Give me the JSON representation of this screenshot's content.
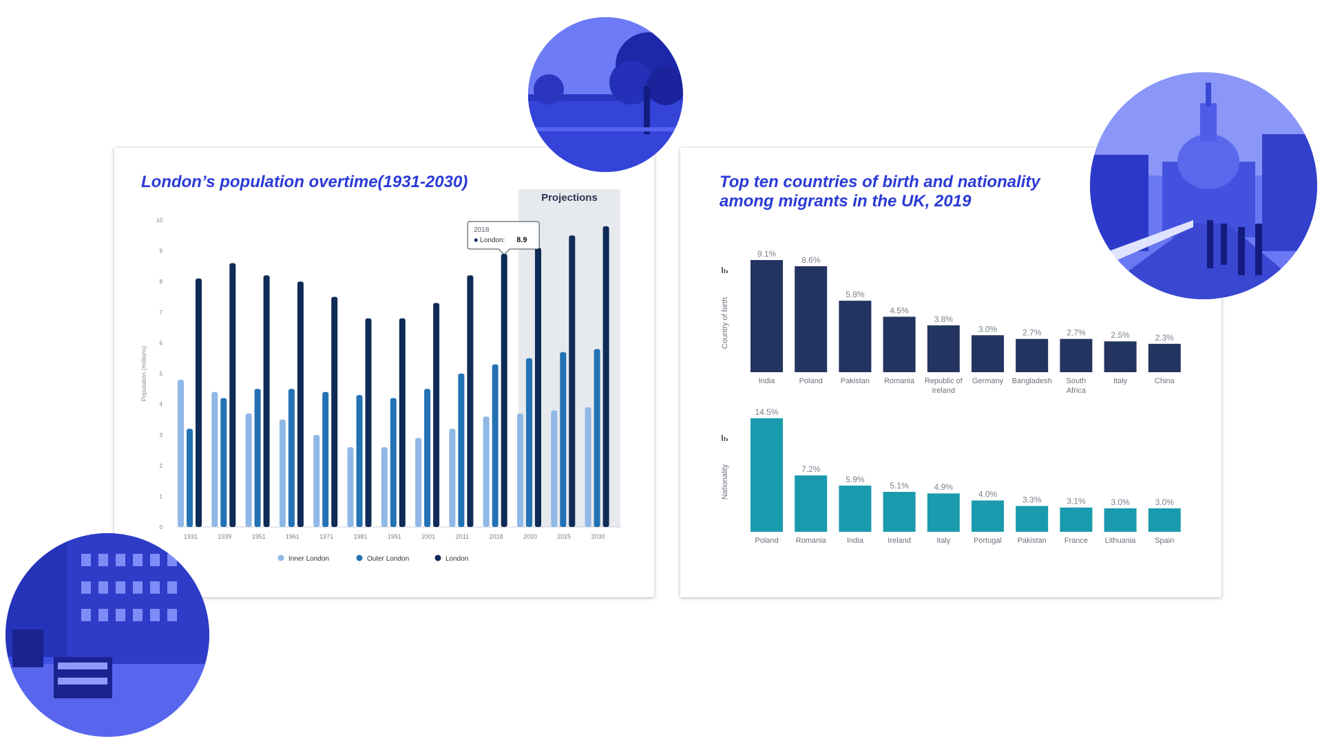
{
  "left_card": {
    "title": "London’s population overtime(1931-2030)"
  },
  "right_card": {
    "title_line1": "Top ten countries of birth and nationality",
    "title_line2": "among migrants in the UK, 2019"
  },
  "photos": [
    {
      "subject": "park with trees",
      "tint": "#2f3fe0"
    },
    {
      "subject": "St Paul's Cathedral and Millennium Bridge",
      "tint": "#2f3fe0"
    },
    {
      "subject": "London street with double-decker buses",
      "tint": "#2f3fe0"
    }
  ],
  "chart_data": [
    {
      "type": "bar",
      "title": "",
      "ylabel": "Population (millions)",
      "ylim": [
        0,
        10
      ],
      "yticks": [
        "0",
        "1",
        "2",
        "3",
        "4",
        "5",
        "6",
        "7",
        "8",
        "9",
        "10"
      ],
      "categories": [
        "1931",
        "1939",
        "1951",
        "1961",
        "1971",
        "1981",
        "1991",
        "2001",
        "2011",
        "2018",
        "2020",
        "2025",
        "2030"
      ],
      "series": [
        {
          "name": "Inner London",
          "color": "#8fb8e6",
          "values": [
            4.8,
            4.4,
            3.7,
            3.5,
            3.0,
            2.6,
            2.6,
            2.9,
            3.2,
            3.6,
            3.7,
            3.8,
            3.9
          ]
        },
        {
          "name": "Outer London",
          "color": "#2372b4",
          "values": [
            3.2,
            4.2,
            4.5,
            4.5,
            4.4,
            4.3,
            4.2,
            4.5,
            5.0,
            5.3,
            5.5,
            5.7,
            5.8
          ]
        },
        {
          "name": "London",
          "color": "#0f2b57",
          "values": [
            8.1,
            8.6,
            8.2,
            8.0,
            7.5,
            6.8,
            6.8,
            7.3,
            8.2,
            8.9,
            9.1,
            9.5,
            9.8
          ]
        }
      ],
      "shaded_region": {
        "label": "Projections",
        "from_category": "2020",
        "to_category": "2030",
        "color": "#e6e9ee"
      },
      "tooltip": {
        "category": "2018",
        "series": "London",
        "value": "8.9"
      },
      "legend_position": "bottom",
      "grid": false
    },
    {
      "type": "bar",
      "title": "",
      "ylabel": "Country of birth",
      "color": "#243460",
      "categories": [
        "India",
        "Poland",
        "Pakistan",
        "Romania",
        "Republic of Ireland",
        "Germany",
        "Bangladesh",
        "South Africa",
        "Italy",
        "China"
      ],
      "values": [
        9.1,
        8.6,
        5.8,
        4.5,
        3.8,
        3.0,
        2.7,
        2.7,
        2.5,
        2.3
      ],
      "labels": [
        "9.1%",
        "8.6%",
        "5.8%",
        "4.5%",
        "3.8%",
        "3.0%",
        "2.7%",
        "2.7%",
        "2.5%",
        "2.3%"
      ],
      "grid": false
    },
    {
      "type": "bar",
      "title": "",
      "ylabel": "Nationality",
      "color": "#1a9aad",
      "categories": [
        "Poland",
        "Romania",
        "India",
        "Ireland",
        "Italy",
        "Portugal",
        "Pakistan",
        "France",
        "Lithuania",
        "Spain"
      ],
      "values": [
        14.5,
        7.2,
        5.9,
        5.1,
        4.9,
        4.0,
        3.3,
        3.1,
        3.0,
        3.0
      ],
      "labels": [
        "14.5%",
        "7.2%",
        "5.9%",
        "5.1%",
        "4.9%",
        "4.0%",
        "3.3%",
        "3.1%",
        "3.0%",
        "3.0%"
      ],
      "grid": false
    }
  ]
}
